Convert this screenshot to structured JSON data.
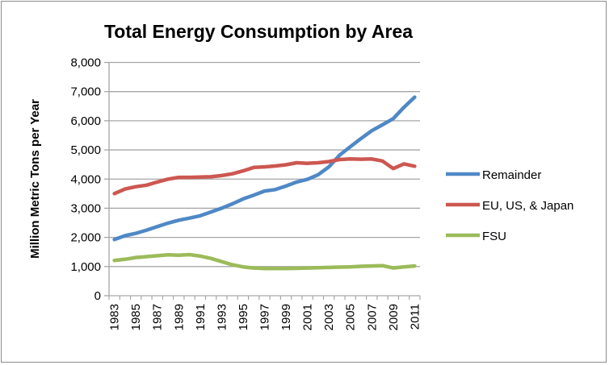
{
  "chart_data": {
    "type": "line",
    "title": "Total Energy Consumption by Area",
    "xlabel": "",
    "ylabel": "Million Metric Tons per Year",
    "ylim": [
      0,
      8000
    ],
    "yticks": [
      0,
      1000,
      2000,
      3000,
      4000,
      5000,
      6000,
      7000,
      8000
    ],
    "ytick_labels": [
      "0",
      "1,000",
      "2,000",
      "3,000",
      "4,000",
      "5,000",
      "6,000",
      "7,000",
      "8,000"
    ],
    "grid": true,
    "legend_position": "right",
    "x": [
      1983,
      1984,
      1985,
      1986,
      1987,
      1988,
      1989,
      1990,
      1991,
      1992,
      1993,
      1994,
      1995,
      1996,
      1997,
      1998,
      1999,
      2000,
      2001,
      2002,
      2003,
      2004,
      2005,
      2006,
      2007,
      2008,
      2009,
      2010,
      2011
    ],
    "xtick_labels": [
      "1983",
      "1985",
      "1987",
      "1989",
      "1991",
      "1993",
      "1995",
      "1997",
      "1999",
      "2001",
      "2003",
      "2005",
      "2007",
      "2009",
      "2011"
    ],
    "series": [
      {
        "name": "Remainder",
        "color": "#4f88c6",
        "values": [
          1930,
          2060,
          2140,
          2250,
          2370,
          2490,
          2590,
          2660,
          2740,
          2870,
          3000,
          3150,
          3320,
          3450,
          3590,
          3640,
          3760,
          3900,
          3990,
          4150,
          4420,
          4820,
          5110,
          5390,
          5660,
          5860,
          6070,
          6460,
          6810
        ]
      },
      {
        "name": "EU, US, & Japan",
        "color": "#cd5751",
        "values": [
          3500,
          3660,
          3740,
          3790,
          3900,
          4000,
          4060,
          4060,
          4070,
          4080,
          4120,
          4180,
          4280,
          4400,
          4420,
          4450,
          4490,
          4560,
          4540,
          4560,
          4600,
          4670,
          4690,
          4680,
          4690,
          4620,
          4360,
          4520,
          4440
        ]
      },
      {
        "name": "FSU",
        "color": "#9bbb59",
        "values": [
          1210,
          1250,
          1310,
          1340,
          1370,
          1400,
          1390,
          1410,
          1360,
          1280,
          1170,
          1060,
          990,
          950,
          930,
          930,
          930,
          940,
          950,
          960,
          970,
          980,
          990,
          1010,
          1020,
          1030,
          950,
          990,
          1020
        ]
      }
    ]
  }
}
